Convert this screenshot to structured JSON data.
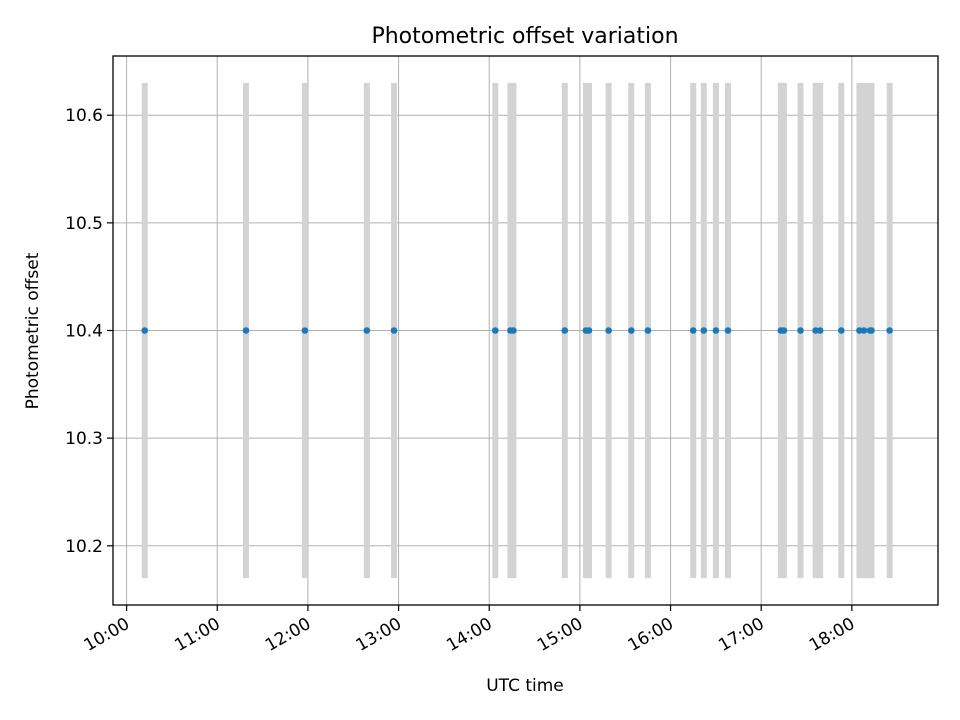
{
  "chart_data": {
    "type": "scatter",
    "title": "Photometric offset variation",
    "xlabel": "UTC time",
    "ylabel": "Photometric offset",
    "xlim": [
      "09:51",
      "18:57"
    ],
    "ylim": [
      10.145,
      10.655
    ],
    "x_ticks": [
      "10:00",
      "11:00",
      "12:00",
      "13:00",
      "14:00",
      "15:00",
      "16:00",
      "17:00",
      "18:00"
    ],
    "y_ticks": [
      10.2,
      10.3,
      10.4,
      10.5,
      10.6
    ],
    "grid": true,
    "error_color": "#d3d3d3",
    "point_color": "#1f77b4",
    "points": [
      {
        "t": "10:12",
        "y": 10.4,
        "err": 0.23
      },
      {
        "t": "11:19",
        "y": 10.4,
        "err": 0.23
      },
      {
        "t": "11:58",
        "y": 10.4,
        "err": 0.23
      },
      {
        "t": "12:39",
        "y": 10.4,
        "err": 0.23
      },
      {
        "t": "12:57",
        "y": 10.4,
        "err": 0.23
      },
      {
        "t": "14:04",
        "y": 10.4,
        "err": 0.23
      },
      {
        "t": "14:14",
        "y": 10.4,
        "err": 0.23
      },
      {
        "t": "14:16",
        "y": 10.4,
        "err": 0.23
      },
      {
        "t": "14:50",
        "y": 10.4,
        "err": 0.23
      },
      {
        "t": "15:04",
        "y": 10.4,
        "err": 0.23
      },
      {
        "t": "15:06",
        "y": 10.4,
        "err": 0.23
      },
      {
        "t": "15:19",
        "y": 10.4,
        "err": 0.23
      },
      {
        "t": "15:34",
        "y": 10.4,
        "err": 0.23
      },
      {
        "t": "15:45",
        "y": 10.4,
        "err": 0.23
      },
      {
        "t": "16:15",
        "y": 10.4,
        "err": 0.23
      },
      {
        "t": "16:22",
        "y": 10.4,
        "err": 0.23
      },
      {
        "t": "16:30",
        "y": 10.4,
        "err": 0.23
      },
      {
        "t": "16:38",
        "y": 10.4,
        "err": 0.23
      },
      {
        "t": "17:13",
        "y": 10.4,
        "err": 0.23
      },
      {
        "t": "17:15",
        "y": 10.4,
        "err": 0.23
      },
      {
        "t": "17:26",
        "y": 10.4,
        "err": 0.23
      },
      {
        "t": "17:36",
        "y": 10.4,
        "err": 0.23
      },
      {
        "t": "17:39",
        "y": 10.4,
        "err": 0.23
      },
      {
        "t": "17:53",
        "y": 10.4,
        "err": 0.23
      },
      {
        "t": "18:05",
        "y": 10.4,
        "err": 0.23
      },
      {
        "t": "18:08",
        "y": 10.4,
        "err": 0.23
      },
      {
        "t": "18:12",
        "y": 10.4,
        "err": 0.23
      },
      {
        "t": "18:13",
        "y": 10.4,
        "err": 0.23
      },
      {
        "t": "18:25",
        "y": 10.4,
        "err": 0.23
      }
    ]
  }
}
